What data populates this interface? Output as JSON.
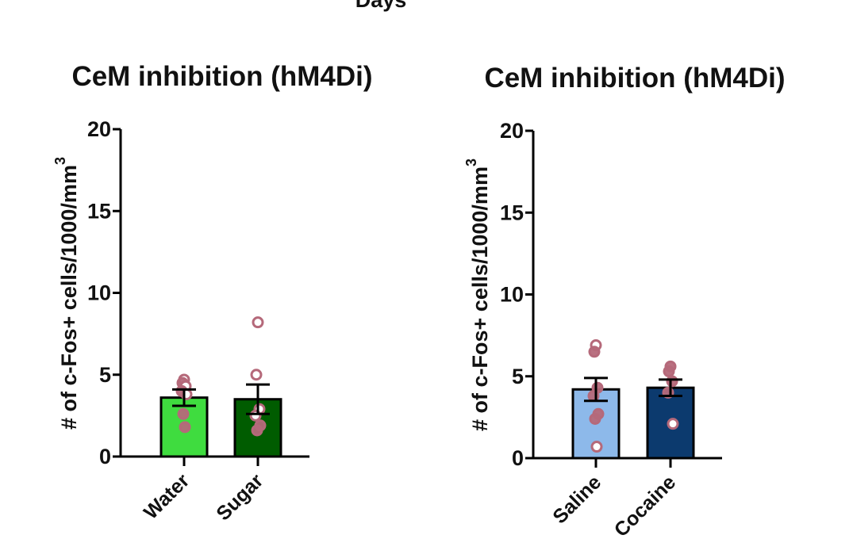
{
  "top_partial_label": "Days",
  "chart_data": [
    {
      "type": "bar",
      "title": "CeM inhibition (hM4Di)",
      "ylabel": "# of c-Fos+ cells/1000/mm",
      "ylabel_superscript": "3",
      "ylim": [
        0,
        20
      ],
      "yticks": [
        "0",
        "5",
        "10",
        "15",
        "20"
      ],
      "categories": [
        "Water",
        "Sugar"
      ],
      "values": [
        3.6,
        3.5
      ],
      "sem": [
        0.5,
        0.9
      ],
      "bar_colors": [
        "#3fdc3f",
        "#005c00"
      ],
      "points": [
        {
          "category": "Water",
          "values": [
            4.7,
            4.5,
            4.3,
            4.0,
            3.8,
            2.6,
            1.8
          ],
          "filled": [
            false,
            true,
            false,
            true,
            false,
            true,
            true
          ]
        },
        {
          "category": "Sugar",
          "values": [
            8.2,
            5.0,
            2.9,
            2.5,
            1.9,
            1.6
          ],
          "filled": [
            false,
            false,
            false,
            false,
            true,
            true
          ]
        }
      ],
      "point_color": "#b5697a"
    },
    {
      "type": "bar",
      "title": "CeM inhibition (hM4Di)",
      "ylabel": "# of c-Fos+ cells/1000/mm",
      "ylabel_superscript": "3",
      "ylim": [
        0,
        20
      ],
      "yticks": [
        "0",
        "5",
        "10",
        "15",
        "20"
      ],
      "categories": [
        "Saline",
        "Cocaine"
      ],
      "values": [
        4.2,
        4.3
      ],
      "sem": [
        0.7,
        0.5
      ],
      "bar_colors": [
        "#8db9ea",
        "#0c3a6e"
      ],
      "points": [
        {
          "category": "Saline",
          "values": [
            6.9,
            6.5,
            4.3,
            3.8,
            2.7,
            2.4,
            0.7
          ],
          "filled": [
            false,
            true,
            true,
            true,
            true,
            true,
            false
          ]
        },
        {
          "category": "Cocaine",
          "values": [
            5.6,
            5.3,
            4.7,
            4.0,
            2.1
          ],
          "filled": [
            true,
            true,
            true,
            true,
            false
          ]
        }
      ],
      "point_color": "#b5697a"
    }
  ]
}
